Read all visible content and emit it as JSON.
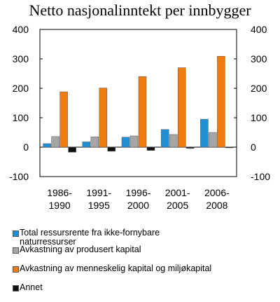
{
  "chart_data": {
    "type": "bar",
    "title": "Netto nasjonalinntekt per innbygger",
    "categories": [
      "1986-\n1990",
      "1991-\n1995",
      "1996-\n2000",
      "2001-\n2005",
      "2006-\n2008"
    ],
    "series": [
      {
        "name": "Total ressursrente fra ikke-fornybare\nnaturressurser",
        "color": "#1f8fd6",
        "values": [
          12,
          18,
          34,
          60,
          95
        ]
      },
      {
        "name": "Avkastning av produsert kapital",
        "color": "#a6a6a6",
        "values": [
          36,
          35,
          38,
          43,
          50
        ]
      },
      {
        "name": "Avkastning av menneskelig kapital og miljøkapital",
        "color": "#f07c0f",
        "values": [
          188,
          201,
          240,
          270,
          309
        ]
      },
      {
        "name": "Annet",
        "color": "#111111",
        "values": [
          -17,
          -14,
          -11,
          -4,
          -1
        ]
      }
    ],
    "ylim": [
      -100,
      400
    ],
    "yticks": [
      "-100",
      "0",
      "100",
      "200",
      "300",
      "400"
    ],
    "ytick_values": [
      -100,
      0,
      100,
      200,
      300,
      400
    ],
    "grid": false,
    "legend_position": "bottom"
  }
}
